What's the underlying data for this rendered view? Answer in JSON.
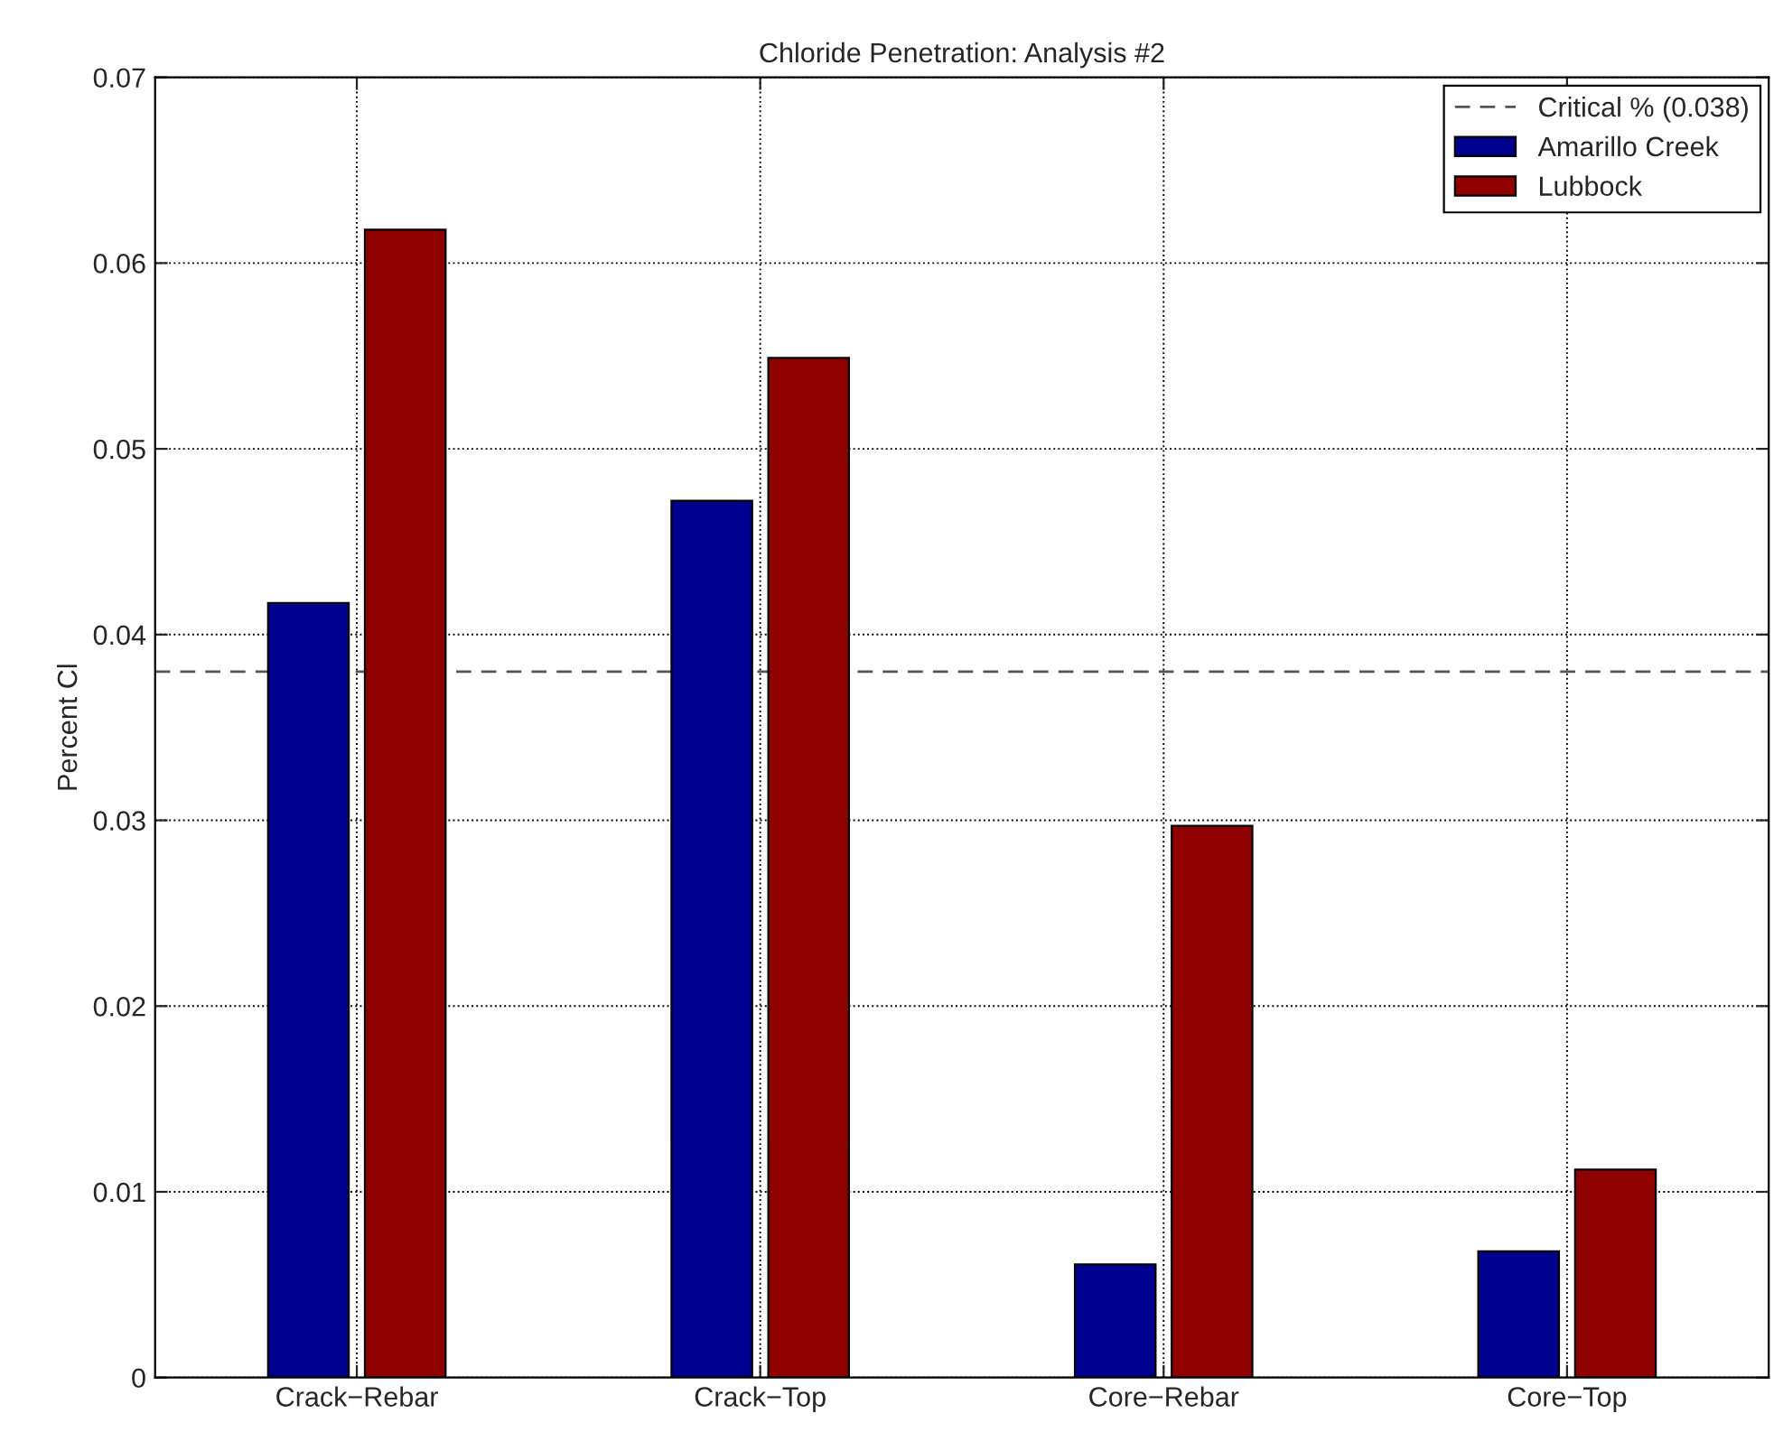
{
  "chart_data": {
    "type": "bar",
    "title": "Chloride Penetration: Analysis #2",
    "ylabel": "Percent Cl",
    "categories": [
      "Crack−Rebar",
      "Crack−Top",
      "Core−Rebar",
      "Core−Top"
    ],
    "series": [
      {
        "name": "Amarillo Creek",
        "color": "#00008f",
        "values": [
          0.0417,
          0.0472,
          0.0061,
          0.0068
        ]
      },
      {
        "name": "Lubbock",
        "color": "#8f0000",
        "values": [
          0.0618,
          0.0549,
          0.0297,
          0.0112
        ]
      }
    ],
    "ylim": [
      0,
      0.07
    ],
    "yticks": [
      0,
      0.01,
      0.02,
      0.03,
      0.04,
      0.05,
      0.06,
      0.07
    ],
    "ref_lines": [
      {
        "axis": "y",
        "value": 0.038,
        "label": "Critical % (0.038)",
        "color": "#555555",
        "line_style": "dashed"
      }
    ],
    "grid": true,
    "legend": "top right"
  }
}
